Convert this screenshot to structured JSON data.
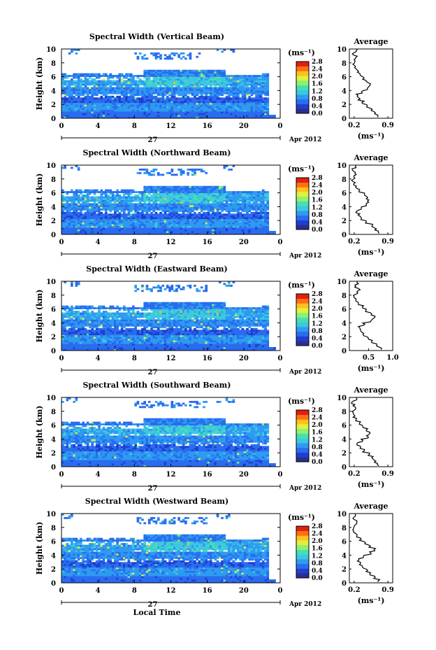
{
  "figure": {
    "bottom_label": "Local Time",
    "colorbar_unit": "(ms⁻¹)",
    "colorbar_ticks": [
      "0.0",
      "0.4",
      "0.8",
      "1.2",
      "1.6",
      "2.0",
      "2.4",
      "2.8"
    ],
    "avg_unit": "(ms⁻¹)",
    "date_day": "27",
    "date_month": "Apr 2012",
    "colors": {
      "scale": [
        "#2b2f8c",
        "#1f3fd0",
        "#2a6cf0",
        "#2e9bf0",
        "#3ec8e0",
        "#46e0b0",
        "#8ff070",
        "#e0f040",
        "#ffc020",
        "#ff7010",
        "#e02010"
      ],
      "axis": "#000000",
      "background": "#ffffff"
    }
  },
  "chart_data": [
    {
      "type": "heatmap",
      "title": "Spectral Width (Vertical Beam)",
      "ylabel": "Height (km)",
      "x_ticks": [
        "0",
        "4",
        "8",
        "12",
        "16",
        "20",
        "0"
      ],
      "y_ticks": [
        "0",
        "2",
        "4",
        "6",
        "8",
        "10"
      ],
      "xlim": [
        0,
        24
      ],
      "ylim": [
        0,
        10
      ],
      "colorbar": {
        "unit": "ms-1",
        "min": 0.0,
        "max": 2.8
      },
      "profile": {
        "title": "Average",
        "x_ticks": [
          "0.2",
          "0.9"
        ],
        "xlim": [
          0.1,
          1.0
        ],
        "heights": [
          0.3,
          0.8,
          1.3,
          1.8,
          2.3,
          2.8,
          3.3,
          3.8,
          4.3,
          4.8,
          5.3,
          5.8,
          6.3,
          6.8,
          7.3,
          7.8,
          8.3,
          8.8,
          9.3,
          9.8
        ],
        "values": [
          0.7,
          0.62,
          0.55,
          0.47,
          0.38,
          0.3,
          0.26,
          0.36,
          0.48,
          0.52,
          0.47,
          0.4,
          0.34,
          0.28,
          0.22,
          0.18,
          0.2,
          0.24,
          0.18,
          0.26
        ]
      }
    },
    {
      "type": "heatmap",
      "title": "Spectral Width (Northward Beam)",
      "ylabel": "Height (km)",
      "x_ticks": [
        "0",
        "4",
        "8",
        "12",
        "16",
        "20",
        "0"
      ],
      "y_ticks": [
        "0",
        "2",
        "4",
        "6",
        "8",
        "10"
      ],
      "xlim": [
        0,
        24
      ],
      "ylim": [
        0,
        10
      ],
      "colorbar": {
        "unit": "ms-1",
        "min": 0.0,
        "max": 2.8
      },
      "profile": {
        "title": "Average",
        "x_ticks": [
          "0.2",
          "0.9"
        ],
        "xlim": [
          0.1,
          1.0
        ],
        "heights": [
          0.3,
          0.8,
          1.3,
          1.8,
          2.3,
          2.8,
          3.3,
          3.8,
          4.3,
          4.8,
          5.3,
          5.8,
          6.3,
          6.8,
          7.3,
          7.8,
          8.3,
          8.8,
          9.3,
          9.8
        ],
        "values": [
          0.72,
          0.64,
          0.56,
          0.46,
          0.36,
          0.3,
          0.26,
          0.34,
          0.45,
          0.5,
          0.46,
          0.4,
          0.3,
          0.24,
          0.2,
          0.16,
          0.2,
          0.22,
          0.18,
          0.24
        ]
      }
    },
    {
      "type": "heatmap",
      "title": "Spectral Width (Eastward Beam)",
      "ylabel": "Height (km)",
      "x_ticks": [
        "0",
        "4",
        "8",
        "12",
        "16",
        "20",
        "0"
      ],
      "y_ticks": [
        "0",
        "2",
        "4",
        "6",
        "8",
        "10"
      ],
      "xlim": [
        0,
        24
      ],
      "ylim": [
        0,
        10
      ],
      "colorbar": {
        "unit": "ms-1",
        "min": 0.0,
        "max": 2.8
      },
      "profile": {
        "title": "Average",
        "x_ticks": [
          "0.5",
          "1.0"
        ],
        "xlim": [
          0.1,
          1.0
        ],
        "heights": [
          0.3,
          0.8,
          1.3,
          1.8,
          2.3,
          2.8,
          3.3,
          3.8,
          4.3,
          4.8,
          5.3,
          5.8,
          6.3,
          6.8,
          7.3,
          7.8,
          8.3,
          8.8,
          9.3,
          9.8
        ],
        "values": [
          0.75,
          0.66,
          0.58,
          0.48,
          0.4,
          0.34,
          0.3,
          0.4,
          0.55,
          0.62,
          0.56,
          0.46,
          0.38,
          0.3,
          0.24,
          0.2,
          0.26,
          0.3,
          0.22,
          0.28
        ]
      }
    },
    {
      "type": "heatmap",
      "title": "Spectral Width (Southward Beam)",
      "ylabel": "Height (km)",
      "x_ticks": [
        "0",
        "4",
        "8",
        "12",
        "16",
        "20",
        "0"
      ],
      "y_ticks": [
        "0",
        "2",
        "4",
        "6",
        "8",
        "10"
      ],
      "xlim": [
        0,
        24
      ],
      "ylim": [
        0,
        10
      ],
      "colorbar": {
        "unit": "ms-1",
        "min": 0.0,
        "max": 2.8
      },
      "profile": {
        "title": "Average",
        "x_ticks": [
          "0.2",
          "0.9"
        ],
        "xlim": [
          0.1,
          1.0
        ],
        "heights": [
          0.3,
          0.8,
          1.3,
          1.8,
          2.3,
          2.8,
          3.3,
          3.8,
          4.3,
          4.8,
          5.3,
          5.8,
          6.3,
          6.8,
          7.3,
          7.8,
          8.3,
          8.8,
          9.3,
          9.8
        ],
        "values": [
          0.7,
          0.63,
          0.57,
          0.5,
          0.4,
          0.32,
          0.27,
          0.36,
          0.47,
          0.53,
          0.46,
          0.38,
          0.31,
          0.25,
          0.2,
          0.18,
          0.22,
          0.2,
          0.17,
          0.24
        ]
      }
    },
    {
      "type": "heatmap",
      "title": "Spectral Width (Westward Beam)",
      "ylabel": "Height (km)",
      "x_ticks": [
        "0",
        "4",
        "8",
        "12",
        "16",
        "20",
        "0"
      ],
      "y_ticks": [
        "0",
        "2",
        "4",
        "6",
        "8",
        "10"
      ],
      "xlim": [
        0,
        24
      ],
      "ylim": [
        0,
        10
      ],
      "colorbar": {
        "unit": "ms-1",
        "min": 0.0,
        "max": 2.8
      },
      "profile": {
        "title": "Average",
        "x_ticks": [
          "0.2",
          "0.9"
        ],
        "xlim": [
          0.1,
          1.0
        ],
        "heights": [
          0.3,
          0.8,
          1.3,
          1.8,
          2.3,
          2.8,
          3.3,
          3.8,
          4.3,
          4.8,
          5.3,
          5.8,
          6.3,
          6.8,
          7.3,
          7.8,
          8.3,
          8.8,
          9.3,
          9.8
        ],
        "values": [
          0.71,
          0.63,
          0.55,
          0.47,
          0.38,
          0.31,
          0.28,
          0.4,
          0.54,
          0.62,
          0.52,
          0.42,
          0.33,
          0.26,
          0.21,
          0.18,
          0.22,
          0.25,
          0.19,
          0.22
        ]
      }
    }
  ]
}
